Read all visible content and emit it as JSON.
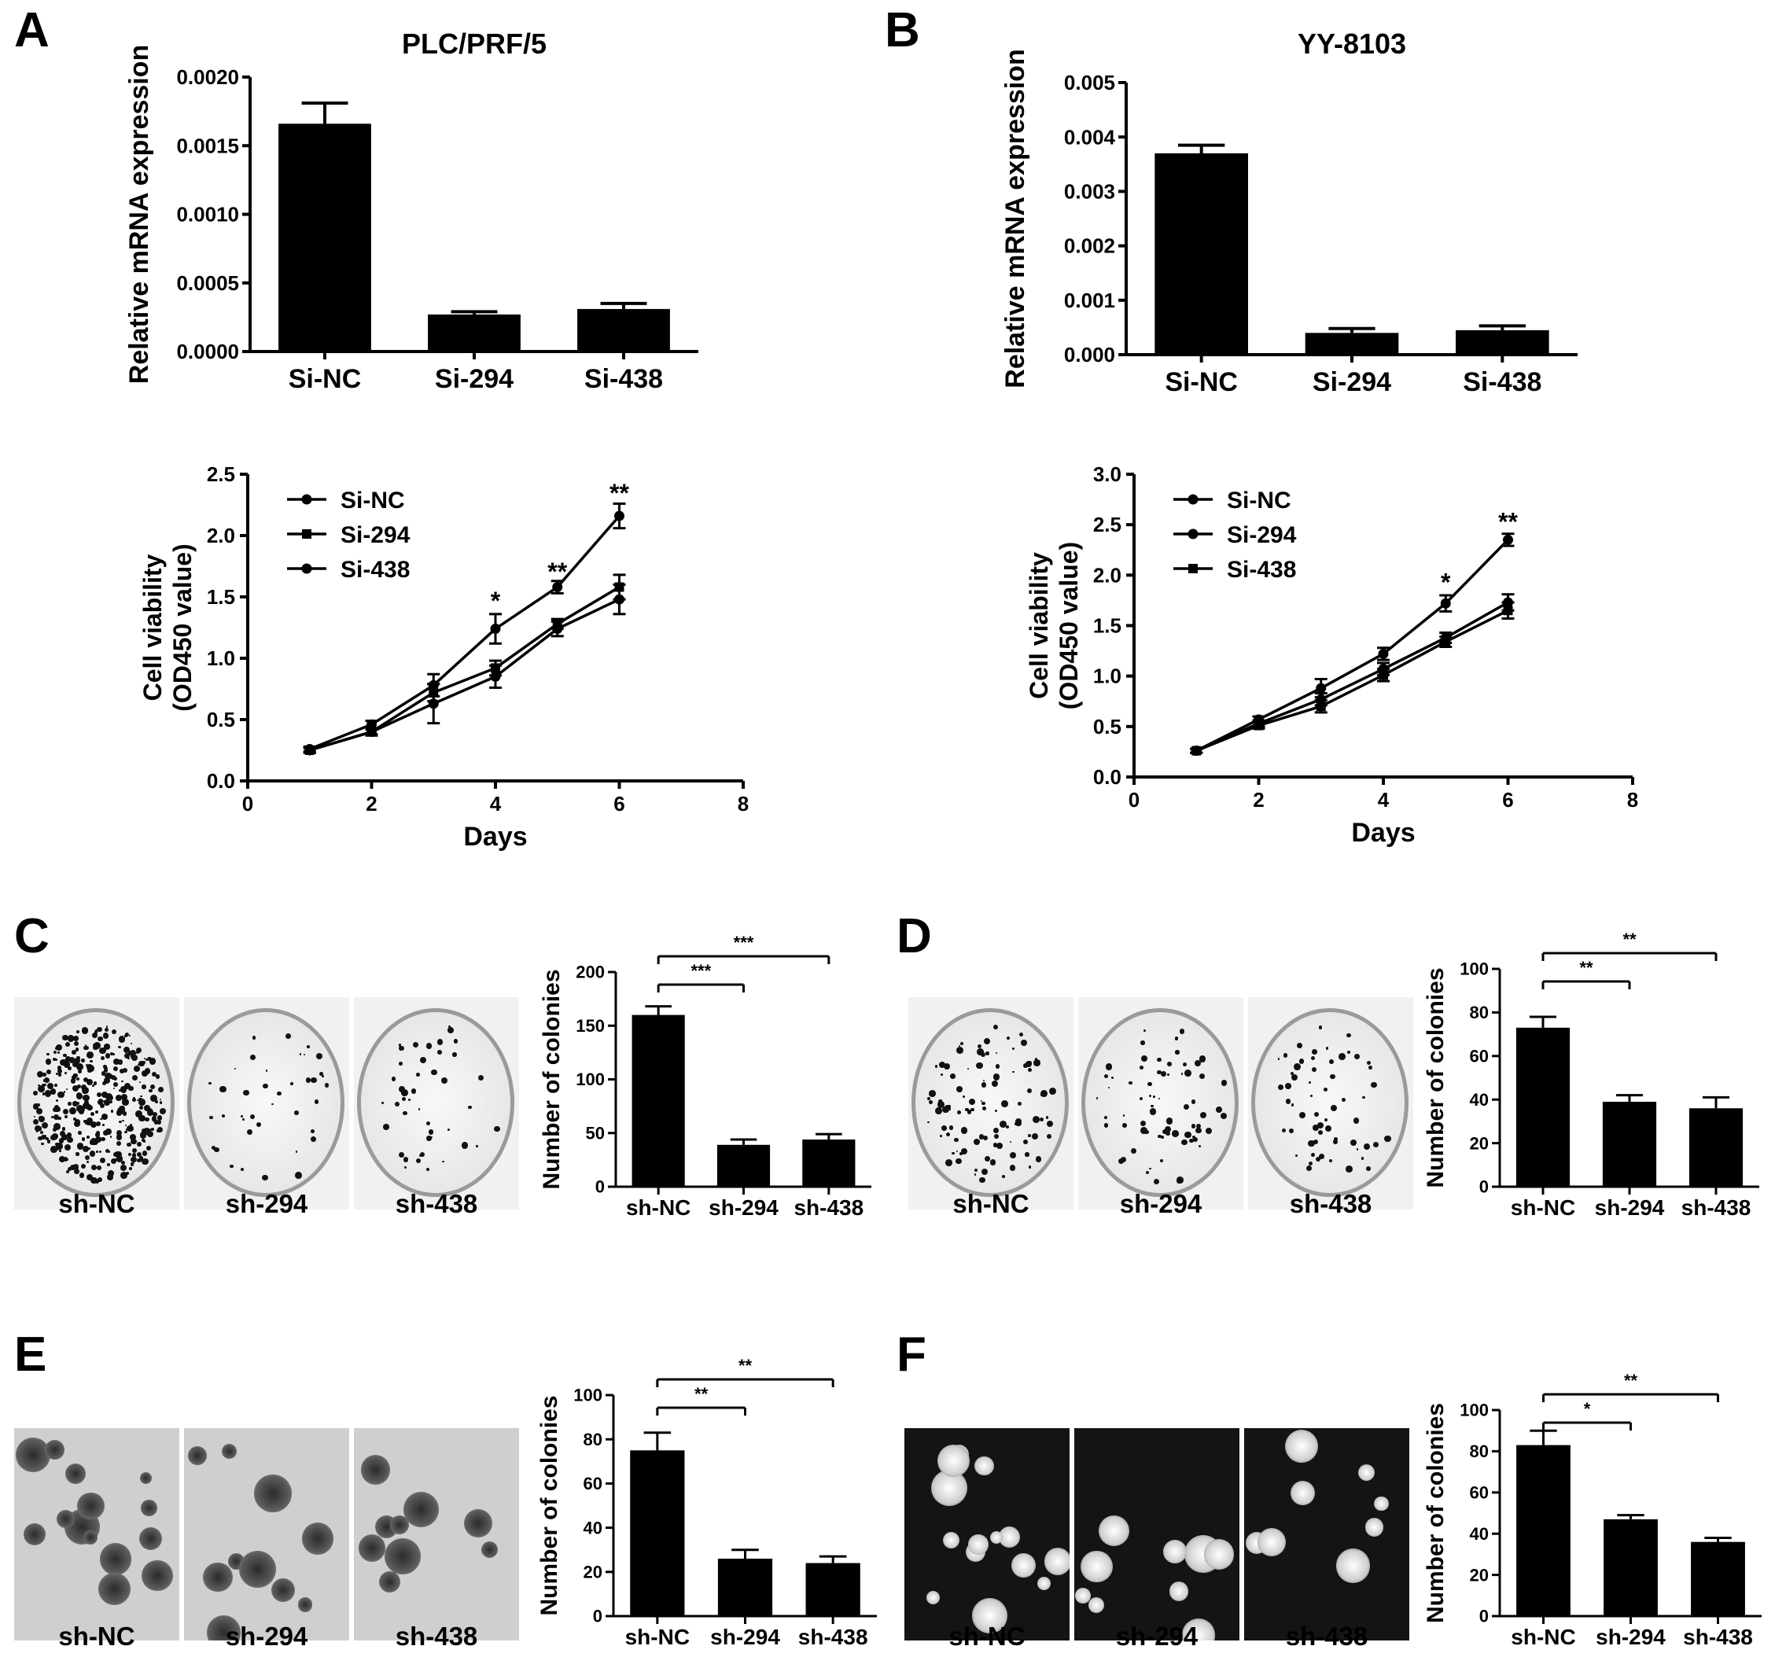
{
  "panel_letters": [
    "A",
    "B",
    "C",
    "D",
    "E",
    "F"
  ],
  "dish_labels": {
    "C": [
      "sh-NC",
      "sh-294",
      "sh-438"
    ],
    "D": [
      "sh-NC",
      "sh-294",
      "sh-438"
    ],
    "E": [
      "sh-NC",
      "sh-294",
      "sh-438"
    ],
    "F": [
      "sh-NC",
      "sh-294",
      "sh-438"
    ]
  },
  "chart_data": [
    {
      "id": "A-bar",
      "type": "bar",
      "title": "PLC/PRF/5",
      "ylabel": "Relative mRNA expression",
      "categories": [
        "Si-NC",
        "Si-294",
        "Si-438"
      ],
      "values": [
        0.00166,
        0.00027,
        0.00031
      ],
      "errors": [
        0.00015,
        2e-05,
        4e-05
      ],
      "ylim": [
        0,
        0.002
      ],
      "yticks": [
        0,
        0.0005,
        0.001,
        0.0015,
        0.002
      ],
      "ytick_labels": [
        "0.0000",
        "0.0005",
        "0.0010",
        "0.0015",
        "0.0020"
      ],
      "bar_color": "#000000"
    },
    {
      "id": "B-bar",
      "type": "bar",
      "title": "YY-8103",
      "ylabel": "Relative mRNA expression",
      "categories": [
        "Si-NC",
        "Si-294",
        "Si-438"
      ],
      "values": [
        0.0037,
        0.0004,
        0.00045
      ],
      "errors": [
        0.00015,
        8e-05,
        8e-05
      ],
      "ylim": [
        0,
        0.005
      ],
      "yticks": [
        0,
        0.001,
        0.002,
        0.003,
        0.004,
        0.005
      ],
      "ytick_labels": [
        "0.000",
        "0.001",
        "0.002",
        "0.003",
        "0.004",
        "0.005"
      ],
      "bar_color": "#000000"
    },
    {
      "id": "A-line",
      "type": "line",
      "xlabel": "Days",
      "ylabel": [
        "Cell viability",
        "(OD450 value)"
      ],
      "xlim": [
        0,
        8
      ],
      "ylim": [
        0,
        2.5
      ],
      "xticks": [
        0,
        2,
        4,
        6,
        8
      ],
      "yticks": [
        0,
        0.5,
        1,
        1.5,
        2,
        2.5
      ],
      "ytick_labels": [
        "0.0",
        "0.5",
        "1.0",
        "1.5",
        "2.0",
        "2.5"
      ],
      "x": [
        1,
        2,
        3,
        4,
        5,
        6
      ],
      "series": [
        {
          "name": "Si-NC",
          "marker": "circle",
          "values": [
            0.26,
            0.46,
            0.78,
            1.24,
            1.58,
            2.16
          ],
          "errors": [
            0.02,
            0.03,
            0.09,
            0.12,
            0.05,
            0.1
          ]
        },
        {
          "name": "Si-294",
          "marker": "square",
          "values": [
            0.25,
            0.4,
            0.72,
            0.92,
            1.28,
            1.58
          ],
          "errors": [
            0.02,
            0.02,
            0.07,
            0.06,
            0.04,
            0.1
          ]
        },
        {
          "name": "Si-438",
          "marker": "circle",
          "values": [
            0.25,
            0.4,
            0.63,
            0.85,
            1.24,
            1.48
          ],
          "errors": [
            0.02,
            0.03,
            0.16,
            0.09,
            0.06,
            0.12
          ]
        }
      ],
      "legend_position": "top-left",
      "annotations": [
        {
          "x": 4,
          "y": 1.46,
          "text": "*"
        },
        {
          "x": 5,
          "y": 1.7,
          "text": "**"
        },
        {
          "x": 6,
          "y": 2.34,
          "text": "**"
        }
      ]
    },
    {
      "id": "B-line",
      "type": "line",
      "xlabel": "Days",
      "ylabel": [
        "Cell viability",
        "(OD450 value)"
      ],
      "xlim": [
        0,
        8
      ],
      "ylim": [
        0,
        3
      ],
      "xticks": [
        0,
        2,
        4,
        6,
        8
      ],
      "yticks": [
        0,
        0.5,
        1,
        1.5,
        2,
        2.5,
        3
      ],
      "ytick_labels": [
        "0.0",
        "0.5",
        "1.0",
        "1.5",
        "2.0",
        "2.5",
        "3.0"
      ],
      "x": [
        1,
        2,
        3,
        4,
        5,
        6
      ],
      "series": [
        {
          "name": "Si-NC",
          "marker": "circle",
          "values": [
            0.26,
            0.57,
            0.88,
            1.22,
            1.72,
            2.35
          ],
          "errors": [
            0.02,
            0.03,
            0.09,
            0.06,
            0.08,
            0.06
          ]
        },
        {
          "name": "Si-294",
          "marker": "circle",
          "values": [
            0.26,
            0.53,
            0.77,
            1.07,
            1.38,
            1.73
          ],
          "errors": [
            0.02,
            0.03,
            0.06,
            0.06,
            0.05,
            0.08
          ]
        },
        {
          "name": "Si-438",
          "marker": "square",
          "values": [
            0.26,
            0.51,
            0.7,
            1.01,
            1.34,
            1.65
          ],
          "errors": [
            0.02,
            0.03,
            0.06,
            0.06,
            0.05,
            0.08
          ]
        }
      ],
      "legend_position": "top-left",
      "annotations": [
        {
          "x": 5,
          "y": 1.92,
          "text": "*"
        },
        {
          "x": 6,
          "y": 2.52,
          "text": "**"
        }
      ]
    },
    {
      "id": "C-bar",
      "type": "bar",
      "ylabel": "Number of colonies",
      "categories": [
        "sh-NC",
        "sh-294",
        "sh-438"
      ],
      "values": [
        160,
        39,
        44
      ],
      "errors": [
        8,
        5,
        5
      ],
      "ylim": [
        0,
        200
      ],
      "yticks": [
        0,
        50,
        100,
        150,
        200
      ],
      "ytick_labels": [
        "0",
        "50",
        "100",
        "150",
        "200"
      ],
      "significance": [
        {
          "from": 0,
          "to": 1,
          "text": "***"
        },
        {
          "from": 0,
          "to": 2,
          "text": "***"
        }
      ],
      "bar_color": "#000000"
    },
    {
      "id": "D-bar",
      "type": "bar",
      "ylabel": "Number of colonies",
      "categories": [
        "sh-NC",
        "sh-294",
        "sh-438"
      ],
      "values": [
        73,
        39,
        36
      ],
      "errors": [
        5,
        3,
        5
      ],
      "ylim": [
        0,
        100
      ],
      "yticks": [
        0,
        20,
        40,
        60,
        80,
        100
      ],
      "ytick_labels": [
        "0",
        "20",
        "40",
        "60",
        "80",
        "100"
      ],
      "significance": [
        {
          "from": 0,
          "to": 1,
          "text": "**"
        },
        {
          "from": 0,
          "to": 2,
          "text": "**"
        }
      ],
      "bar_color": "#000000"
    },
    {
      "id": "E-bar",
      "type": "bar",
      "ylabel": "Number of colonies",
      "categories": [
        "sh-NC",
        "sh-294",
        "sh-438"
      ],
      "values": [
        75,
        26,
        24
      ],
      "errors": [
        8,
        4,
        3
      ],
      "ylim": [
        0,
        100
      ],
      "yticks": [
        0,
        20,
        40,
        60,
        80,
        100
      ],
      "ytick_labels": [
        "0",
        "20",
        "40",
        "60",
        "80",
        "100"
      ],
      "significance": [
        {
          "from": 0,
          "to": 1,
          "text": "**"
        },
        {
          "from": 0,
          "to": 2,
          "text": "**"
        }
      ],
      "bar_color": "#000000"
    },
    {
      "id": "F-bar",
      "type": "bar",
      "ylabel": "Number of colonies",
      "categories": [
        "sh-NC",
        "sh-294",
        "sh-438"
      ],
      "values": [
        83,
        47,
        36
      ],
      "errors": [
        7,
        2,
        2
      ],
      "ylim": [
        0,
        100
      ],
      "yticks": [
        0,
        20,
        40,
        60,
        80,
        100
      ],
      "ytick_labels": [
        "0",
        "20",
        "40",
        "60",
        "80",
        "100"
      ],
      "significance": [
        {
          "from": 0,
          "to": 1,
          "text": "*"
        },
        {
          "from": 0,
          "to": 2,
          "text": "**"
        }
      ],
      "bar_color": "#000000"
    }
  ]
}
